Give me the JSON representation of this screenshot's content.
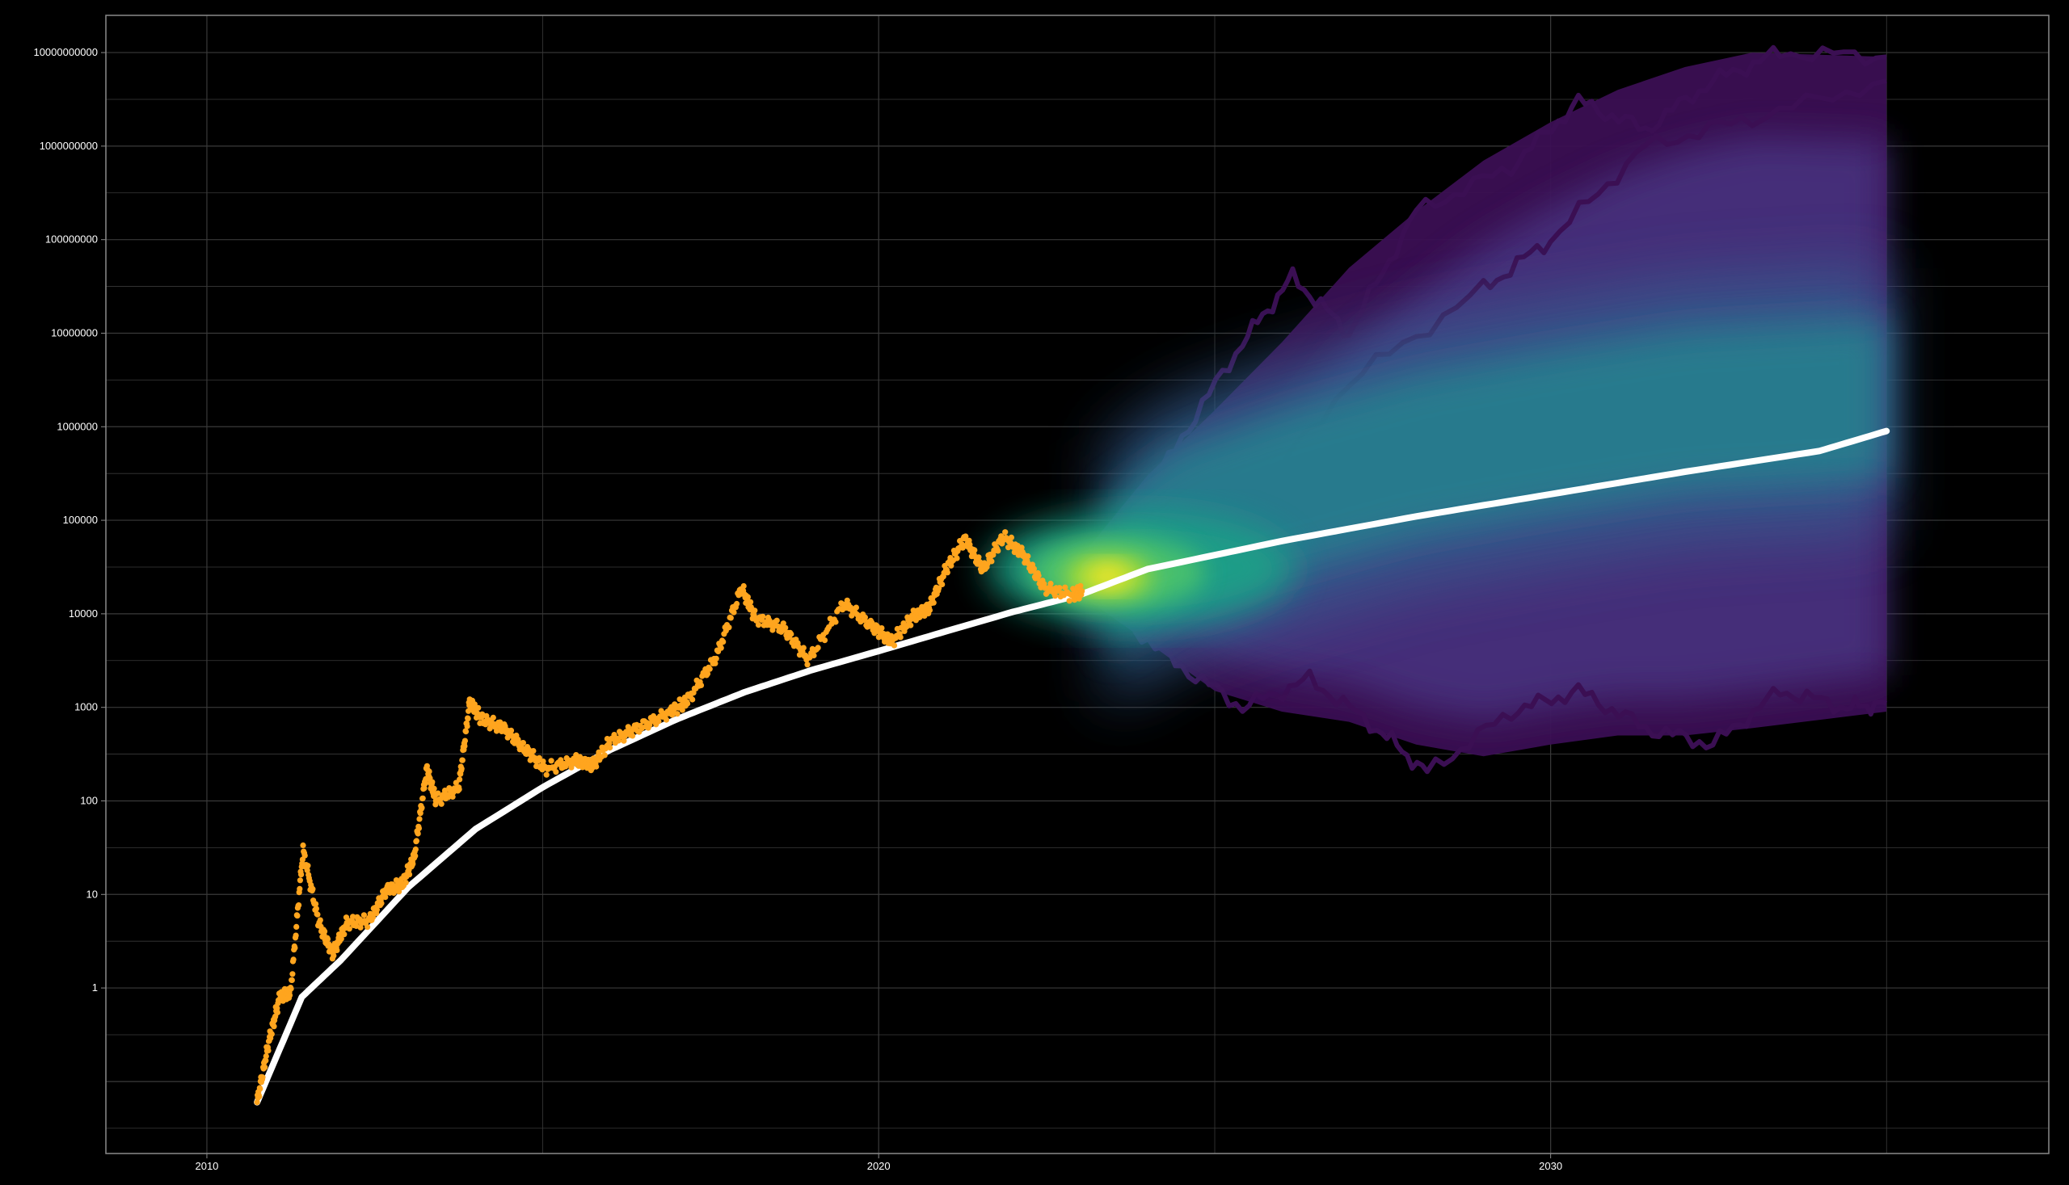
{
  "chart_data": {
    "type": "scatter",
    "title": "",
    "xlabel": "",
    "ylabel": "",
    "x_scale": "date",
    "y_scale": "log10",
    "xlim": [
      "2008-07-01",
      "2037-06-01"
    ],
    "ylim": [
      0.017,
      25000000000
    ],
    "x_ticks": [
      "2010",
      "2020",
      "2030"
    ],
    "y_ticks": [
      "1",
      "10",
      "100",
      "1000",
      "10000",
      "100000",
      "1000000",
      "10000000",
      "100000000",
      "1000000000",
      "10000000000"
    ],
    "grid": true,
    "legend": "none",
    "colors": {
      "background": "#000000",
      "grid": "#3a3a3a",
      "frame": "#8a8a8a",
      "price": "#ffa51e",
      "trend": "#ffffff",
      "density": [
        "#3b0f53",
        "#46337e",
        "#365c8d",
        "#277f8e",
        "#1fa187",
        "#4ac16d",
        "#a0da39",
        "#fde725"
      ]
    },
    "series": [
      {
        "kind": "historical-price",
        "marker": "dot",
        "points": [
          [
            "2010-10-01",
            0.06
          ],
          [
            "2010-12-01",
            0.25
          ],
          [
            "2011-02-01",
            0.8
          ],
          [
            "2011-04-01",
            0.9
          ],
          [
            "2011-06-08",
            30
          ],
          [
            "2011-09-01",
            5
          ],
          [
            "2011-11-15",
            2.3
          ],
          [
            "2012-02-01",
            5
          ],
          [
            "2012-06-01",
            5.2
          ],
          [
            "2012-09-01",
            11
          ],
          [
            "2012-12-01",
            13
          ],
          [
            "2013-02-01",
            25
          ],
          [
            "2013-04-10",
            220
          ],
          [
            "2013-06-01",
            100
          ],
          [
            "2013-10-01",
            140
          ],
          [
            "2013-11-30",
            1150
          ],
          [
            "2014-02-01",
            750
          ],
          [
            "2014-06-01",
            600
          ],
          [
            "2014-10-01",
            350
          ],
          [
            "2015-01-15",
            220
          ],
          [
            "2015-07-01",
            270
          ],
          [
            "2015-10-01",
            240
          ],
          [
            "2016-01-01",
            430
          ],
          [
            "2016-06-01",
            600
          ],
          [
            "2016-12-01",
            900
          ],
          [
            "2017-03-01",
            1200
          ],
          [
            "2017-08-01",
            3500
          ],
          [
            "2017-12-17",
            19000
          ],
          [
            "2018-03-01",
            9000
          ],
          [
            "2018-08-01",
            7000
          ],
          [
            "2018-12-15",
            3200
          ],
          [
            "2019-06-26",
            13000
          ],
          [
            "2019-12-01",
            7200
          ],
          [
            "2020-03-13",
            5000
          ],
          [
            "2020-07-01",
            9200
          ],
          [
            "2020-10-01",
            11500
          ],
          [
            "2021-01-01",
            30000
          ],
          [
            "2021-04-14",
            63000
          ],
          [
            "2021-07-20",
            30000
          ],
          [
            "2021-11-10",
            67000
          ],
          [
            "2022-03-01",
            42000
          ],
          [
            "2022-06-18",
            19000
          ],
          [
            "2022-11-21",
            15800
          ],
          [
            "2023-01-10",
            17500
          ]
        ]
      },
      {
        "kind": "trend",
        "marker": "line",
        "points": [
          [
            "2010-10-01",
            0.06
          ],
          [
            "2011-06-01",
            0.8
          ],
          [
            "2012-01-01",
            2
          ],
          [
            "2013-01-01",
            12
          ],
          [
            "2014-01-01",
            50
          ],
          [
            "2015-01-01",
            140
          ],
          [
            "2016-01-01",
            350
          ],
          [
            "2017-01-01",
            750
          ],
          [
            "2018-01-01",
            1450
          ],
          [
            "2019-01-01",
            2500
          ],
          [
            "2020-01-01",
            4000
          ],
          [
            "2021-01-01",
            6500
          ],
          [
            "2022-01-01",
            10500
          ],
          [
            "2023-01-01",
            16000
          ],
          [
            "2024-01-01",
            30000
          ],
          [
            "2026-01-01",
            60000
          ],
          [
            "2028-01-01",
            110000
          ],
          [
            "2030-01-01",
            190000
          ],
          [
            "2032-01-01",
            330000
          ],
          [
            "2034-01-01",
            550000
          ],
          [
            "2035-01-01",
            900000
          ]
        ]
      },
      {
        "kind": "simulated-paths-density",
        "marker": "density",
        "envelope": [
          [
            "2023-01-01",
            16000,
            40000
          ],
          [
            "2024-01-01",
            5000,
            300000
          ],
          [
            "2025-01-01",
            1500,
            1500000
          ],
          [
            "2026-01-01",
            900,
            8000000
          ],
          [
            "2027-01-01",
            700,
            50000000
          ],
          [
            "2028-01-01",
            400,
            200000000
          ],
          [
            "2029-01-01",
            300,
            700000000
          ],
          [
            "2030-01-01",
            400,
            1800000000
          ],
          [
            "2031-01-01",
            500,
            4000000000
          ],
          [
            "2032-01-01",
            500,
            7000000000
          ],
          [
            "2033-01-01",
            600,
            10000000000
          ],
          [
            "2035-01-01",
            900,
            9000000000
          ]
        ],
        "core": [
          [
            "2023-06-01",
            25000
          ],
          [
            "2024-06-01",
            80000
          ],
          [
            "2026-01-01",
            200000
          ],
          [
            "2028-01-01",
            500000
          ],
          [
            "2030-01-01",
            900000
          ],
          [
            "2032-01-01",
            1500000
          ],
          [
            "2035-01-01",
            2000000
          ]
        ],
        "hot_spot": [
          "2023-06-01",
          25000
        ],
        "extreme_paths": [
          [
            [
              "2023-06-01",
              30000
            ],
            [
              "2024-06-01",
              600000
            ],
            [
              "2025-06-01",
              8000000
            ],
            [
              "2026-03-01",
              40000000
            ],
            [
              "2027-01-01",
              10000000
            ],
            [
              "2028-01-01",
              200000000
            ],
            [
              "2029-06-01",
              600000000
            ],
            [
              "2030-06-01",
              3000000000
            ],
            [
              "2031-06-01",
              1500000000
            ],
            [
              "2032-06-01",
              5000000000
            ],
            [
              "2033-06-01",
              10000000000
            ],
            [
              "2035-01-01",
              9000000000
            ]
          ],
          [
            [
              "2023-06-01",
              12000
            ],
            [
              "2024-06-01",
              3000
            ],
            [
              "2025-06-01",
              1000
            ],
            [
              "2026-06-01",
              2000
            ],
            [
              "2027-06-01",
              600
            ],
            [
              "2028-03-01",
              200
            ],
            [
              "2029-06-01",
              900
            ],
            [
              "2030-06-01",
              1500
            ],
            [
              "2031-06-01",
              600
            ],
            [
              "2032-06-01",
              400
            ],
            [
              "2033-06-01",
              1500
            ],
            [
              "2034-06-01",
              1000
            ],
            [
              "2035-01-01",
              1100
            ]
          ],
          [
            [
              "2023-06-01",
              20000
            ],
            [
              "2025-01-01",
              50000
            ],
            [
              "2027-01-01",
              3000000
            ],
            [
              "2029-01-01",
              30000000
            ],
            [
              "2030-01-01",
              100000000
            ],
            [
              "2031-06-01",
              1000000000
            ],
            [
              "2033-01-01",
              2000000000
            ],
            [
              "2035-01-01",
              5000000000
            ]
          ]
        ]
      }
    ]
  }
}
